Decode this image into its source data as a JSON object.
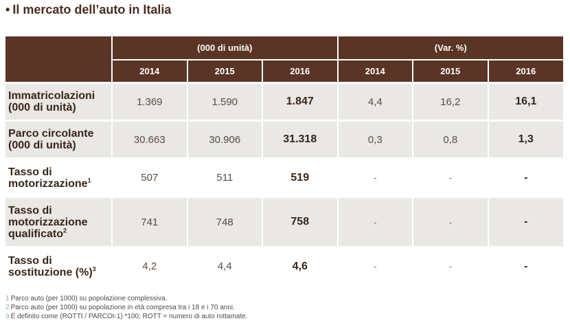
{
  "title": "Il mercato dell’auto in Italia",
  "header": {
    "group_units": "(000 di unità)",
    "group_var": "(Var. %)",
    "years": [
      "2014",
      "2015",
      "2016",
      "2014",
      "2015",
      "2016"
    ]
  },
  "rows": [
    {
      "label_line1": "Immatricolazioni",
      "label_line2": "(000 di unità)",
      "label_line3": "",
      "sup": "",
      "values": [
        "1.369",
        "1.590",
        "1.847",
        "4,4",
        "16,2",
        "16,1"
      ]
    },
    {
      "label_line1": "Parco circolante",
      "label_line2": "(000 di unità)",
      "label_line3": "",
      "sup": "",
      "values": [
        "30.663",
        "30.906",
        "31.318",
        "0,3",
        "0,8",
        "1,3"
      ]
    },
    {
      "label_line1": "Tasso di",
      "label_line2": "motorizzazione",
      "label_line3": "",
      "sup": "1",
      "values": [
        "507",
        "511",
        "519",
        "-",
        "-",
        "-"
      ]
    },
    {
      "label_line1": "Tasso di",
      "label_line2": "motorizzazione",
      "label_line3": "qualificato",
      "sup": "2",
      "values": [
        "741",
        "748",
        "758",
        "-",
        "-",
        "-"
      ]
    },
    {
      "label_line1": "Tasso di",
      "label_line2": "sostituzione (%)",
      "label_line3": "",
      "sup": "3",
      "values": [
        "4,2",
        "4,4",
        "4,6",
        "-",
        "-",
        "-"
      ]
    }
  ],
  "notes": [
    {
      "num": "1",
      "text": "Parco auto (per 1000) su popolazione complessiva."
    },
    {
      "num": "2",
      "text": "Parco auto (per 1000) su popolazione in età compresa tra i 18 e i 70 anni."
    },
    {
      "num": "3",
      "text": "È definito come (ROTTt  / PARCOt-1) *100; ROTT = numero di auto rottamate."
    }
  ]
}
